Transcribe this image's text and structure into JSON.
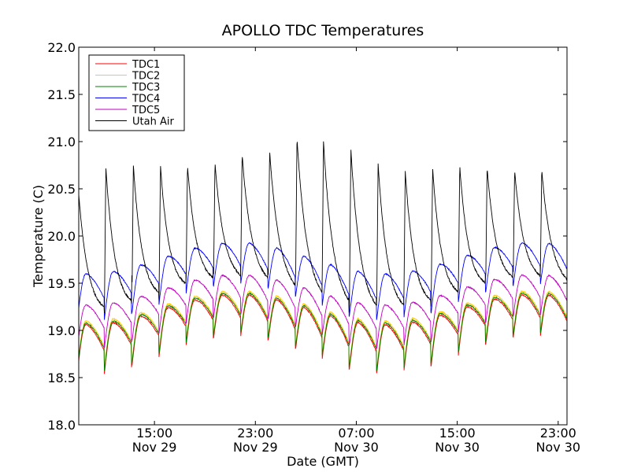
{
  "chart_data": {
    "type": "line",
    "title": "APOLLO TDC Temperatures",
    "xlabel": "Date (GMT)",
    "ylabel": "Temperature (C)",
    "x_unit": "hours since Nov 29 00:00 GMT",
    "xlim": [
      9.0,
      47.7
    ],
    "ylim": [
      18.0,
      22.0
    ],
    "yticks": [
      18.0,
      18.5,
      19.0,
      19.5,
      20.0,
      20.5,
      21.0,
      21.5,
      22.0
    ],
    "ytick_labels": [
      "18.0",
      "18.5",
      "19.0",
      "19.5",
      "20.0",
      "20.5",
      "21.0",
      "21.5",
      "22.0"
    ],
    "xticks": [
      {
        "value": 15,
        "time": "15:00",
        "date": "Nov 29"
      },
      {
        "value": 23,
        "time": "23:00",
        "date": "Nov 29"
      },
      {
        "value": 31,
        "time": "07:00",
        "date": "Nov 30"
      },
      {
        "value": 39,
        "time": "15:00",
        "date": "Nov 30"
      },
      {
        "value": 47,
        "time": "23:00",
        "date": "Nov 30"
      }
    ],
    "legend_position": "top-left",
    "grid": false,
    "cycle_period_hours": 2.15,
    "series": [
      {
        "name": "TDC1",
        "color": "#ff0000",
        "note": "daily-modulated oscillation, minima ~18.4-19.0, maxima ~19.1-19.4"
      },
      {
        "name": "TDC2",
        "color": "#ffcc00",
        "note": "tracks TDC1 closely, slightly higher"
      },
      {
        "name": "TDC3",
        "color": "#008000",
        "note": "tracks TDC1 closely"
      },
      {
        "name": "TDC4",
        "color": "#0000ff",
        "note": "oscillates ~19.1-19.95, lowest around 07:00 Nov 30"
      },
      {
        "name": "TDC5",
        "color": "#bf00bf",
        "note": "oscillates ~18.65-19.6"
      },
      {
        "name": "Utah Air",
        "color": "#000000",
        "note": "sharp spikes to ~20.7-21.05 then decay to ~19.2-20.0"
      }
    ],
    "utah_air_peaks": [
      {
        "x": 11.15,
        "y": 20.73
      },
      {
        "x": 13.33,
        "y": 20.75
      },
      {
        "x": 15.48,
        "y": 20.74
      },
      {
        "x": 17.62,
        "y": 20.75
      },
      {
        "x": 19.8,
        "y": 20.77
      },
      {
        "x": 21.95,
        "y": 20.87
      },
      {
        "x": 24.13,
        "y": 20.9
      },
      {
        "x": 26.3,
        "y": 21.04
      },
      {
        "x": 28.4,
        "y": 21.0
      },
      {
        "x": 30.57,
        "y": 20.92
      },
      {
        "x": 32.73,
        "y": 20.77
      },
      {
        "x": 34.88,
        "y": 20.69
      },
      {
        "x": 37.05,
        "y": 20.72
      },
      {
        "x": 39.2,
        "y": 20.74
      },
      {
        "x": 41.37,
        "y": 20.73
      },
      {
        "x": 43.55,
        "y": 20.7
      }
    ]
  }
}
